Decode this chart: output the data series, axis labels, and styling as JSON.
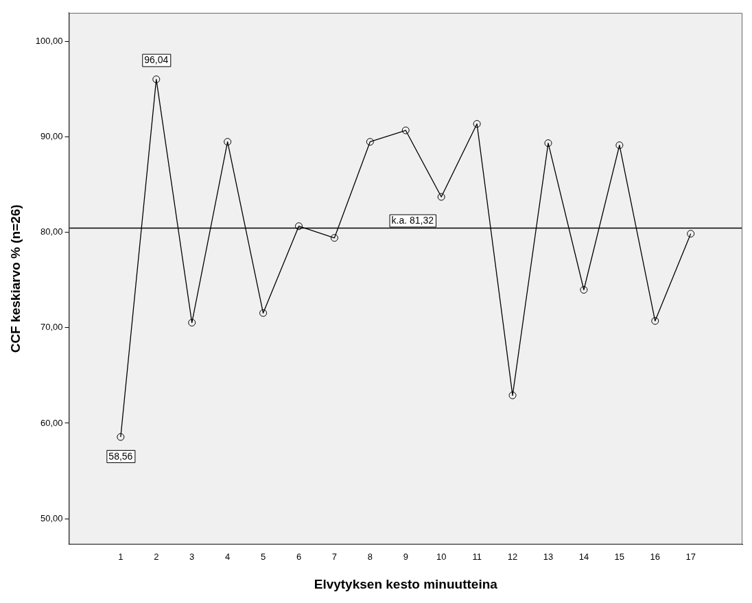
{
  "chart_data": {
    "type": "line",
    "xlabel": "Elvytyksen kesto minuutteina",
    "ylabel": "CCF keskiarvo % (n=26)",
    "x": [
      1,
      2,
      3,
      4,
      5,
      6,
      7,
      8,
      9,
      10,
      11,
      12,
      13,
      14,
      15,
      16,
      17
    ],
    "series": [
      {
        "color": "#000000",
        "values": [
          58.56,
          96.04,
          70.54,
          89.49,
          71.55,
          80.65,
          79.42,
          89.49,
          90.69,
          83.72,
          91.37,
          62.92,
          89.35,
          73.98,
          89.13,
          70.72,
          79.86
        ],
        "value_labels": [
          "58,56",
          "96,04",
          null,
          null,
          null,
          null,
          null,
          null,
          null,
          null,
          null,
          null,
          null,
          null,
          null,
          null,
          null
        ]
      }
    ],
    "xlim": [
      -0.45,
      18.45
    ],
    "xticks": [
      1,
      2,
      3,
      4,
      5,
      6,
      7,
      8,
      9,
      10,
      11,
      12,
      13,
      14,
      15,
      16,
      17
    ],
    "ylim": [
      47.3,
      103
    ],
    "yticks": [
      {
        "value": 50,
        "label": "50,00"
      },
      {
        "value": 60,
        "label": "60,00"
      },
      {
        "value": 70,
        "label": "70,00"
      },
      {
        "value": 80,
        "label": "80,00"
      },
      {
        "value": 90,
        "label": "90,00"
      },
      {
        "value": 100,
        "label": "100,00"
      }
    ],
    "ref_lines": [
      {
        "axis": "y",
        "value": 80.45,
        "label": "k.a. 81,32",
        "color": "#000000"
      }
    ],
    "marker": "circle",
    "line_style": "solid",
    "grid": false,
    "legend": false
  }
}
